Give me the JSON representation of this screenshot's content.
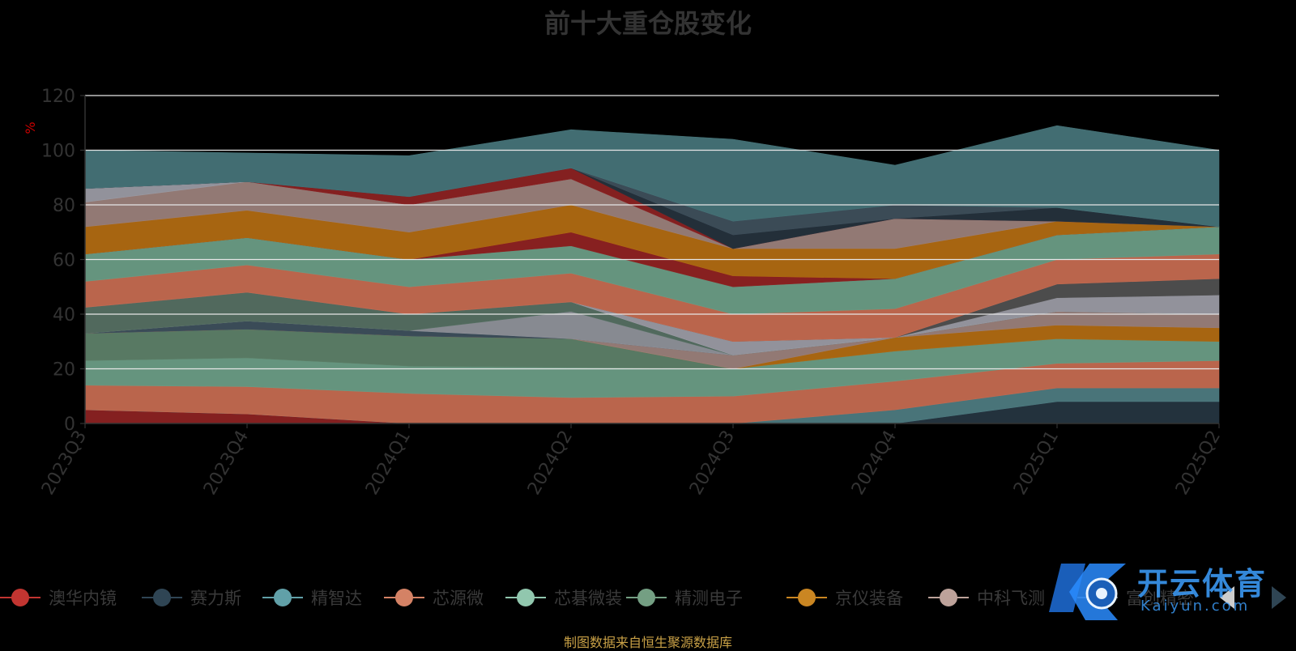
{
  "chart_data": {
    "type": "area",
    "stacked": true,
    "title": "前十大重仓股变化",
    "ylabel": "%",
    "ylim": [
      0,
      120
    ],
    "yticks": [
      0,
      20,
      40,
      60,
      80,
      100,
      120
    ],
    "grid": true,
    "legend_position": "bottom",
    "categories": [
      "2023Q3",
      "2023Q4",
      "2024Q1",
      "2024Q2",
      "2024Q3",
      "2024Q4",
      "2025Q1",
      "2025Q2"
    ],
    "series": [
      {
        "name": "澳华内镜",
        "values": [
          5,
          3.5,
          0,
          0,
          0,
          0,
          0,
          0
        ]
      },
      {
        "name": "赛力斯",
        "values": [
          0,
          0,
          0,
          0,
          0,
          0,
          8,
          8
        ]
      },
      {
        "name": "精智达",
        "values": [
          0,
          0,
          0,
          0,
          0,
          5,
          5,
          5
        ]
      },
      {
        "name": "芯源微",
        "values": [
          9,
          10,
          11,
          9.5,
          10,
          10.5,
          9,
          10
        ]
      },
      {
        "name": "芯碁微装",
        "values": [
          9,
          10.5,
          10,
          11,
          10,
          11,
          9,
          7
        ]
      },
      {
        "name": "精测电子",
        "values": [
          10,
          10.5,
          11,
          10.5,
          0,
          0,
          0,
          0
        ]
      },
      {
        "name": "京仪装备",
        "values": [
          0,
          0,
          0,
          0,
          0,
          5,
          5,
          5
        ]
      },
      {
        "name": "中科飞测",
        "values": [
          0,
          0,
          0,
          0,
          5,
          0,
          5,
          5
        ]
      },
      {
        "name": "富创精密",
        "values": [
          0,
          3,
          2,
          0,
          0,
          0,
          0,
          0
        ]
      },
      {
        "name": "",
        "values": [
          0,
          0,
          0,
          10,
          0,
          0,
          0,
          0
        ]
      },
      {
        "name": "",
        "values": [
          9.5,
          10.5,
          6,
          3.5,
          0,
          0,
          0,
          0
        ]
      },
      {
        "name": "",
        "values": [
          0,
          0,
          0,
          0,
          5,
          0,
          5,
          7
        ]
      },
      {
        "name": "",
        "values": [
          0,
          0,
          0,
          0,
          0,
          0,
          5,
          6
        ]
      },
      {
        "name": "",
        "values": [
          9.5,
          10,
          10,
          10.5,
          10,
          10.5,
          9,
          9
        ]
      },
      {
        "name": "",
        "values": [
          10,
          10,
          10,
          10,
          10,
          11,
          9,
          10
        ]
      },
      {
        "name": "",
        "values": [
          0,
          0,
          0,
          5,
          4,
          0,
          0,
          0
        ]
      },
      {
        "name": "",
        "values": [
          10,
          10,
          10,
          10,
          10,
          11,
          5,
          0
        ]
      },
      {
        "name": "",
        "values": [
          9,
          10.5,
          10,
          9.5,
          0,
          11,
          0,
          0
        ]
      },
      {
        "name": "",
        "values": [
          5,
          0,
          0,
          0,
          0,
          0,
          0,
          0
        ]
      },
      {
        "name": "",
        "values": [
          0,
          0,
          3,
          4,
          0,
          0,
          0,
          0
        ]
      },
      {
        "name": "",
        "values": [
          0,
          0,
          0,
          0,
          5,
          0,
          5,
          0
        ]
      },
      {
        "name": "",
        "values": [
          0,
          0,
          0,
          0,
          5,
          5,
          0,
          0
        ]
      },
      {
        "name": "",
        "values": [
          14,
          10.5,
          15,
          14,
          30,
          14.5,
          30,
          28
        ]
      }
    ],
    "series_colors": [
      "#8b2222",
      "#253540",
      "#4d7a80",
      "#c46a50",
      "#6a9c85",
      "#5d7f68",
      "#b06a12",
      "#9a7f7a",
      "#3d4f5c",
      "#8e9199",
      "#556f62",
      "#9a9aa3",
      "#505050",
      "#c46a50",
      "#6a9c85",
      "#8e2222",
      "#b06a12",
      "#9a7f7a",
      "#9a9aa3",
      "#8b2222",
      "#25323c",
      "#3e4f5b",
      "#467378"
    ]
  },
  "legend": {
    "items": [
      {
        "label": "澳华内镜",
        "color": "#c23531"
      },
      {
        "label": "赛力斯",
        "color": "#2f4554"
      },
      {
        "label": "精智达",
        "color": "#61a0a8"
      },
      {
        "label": "芯源微",
        "color": "#d48265"
      },
      {
        "label": "芯碁微装",
        "color": "#91c7ae"
      },
      {
        "label": "精测电子",
        "color": "#749f83"
      },
      {
        "label": "京仪装备",
        "color": "#ca8622"
      },
      {
        "label": "中科飞测",
        "color": "#bda29a"
      },
      {
        "label": "富创精密",
        "color": "#6e7074"
      }
    ]
  },
  "footer": "制图数据来自恒生聚源数据库",
  "watermark": {
    "text": "开云体育",
    "sub": "Kaiyun.com"
  }
}
